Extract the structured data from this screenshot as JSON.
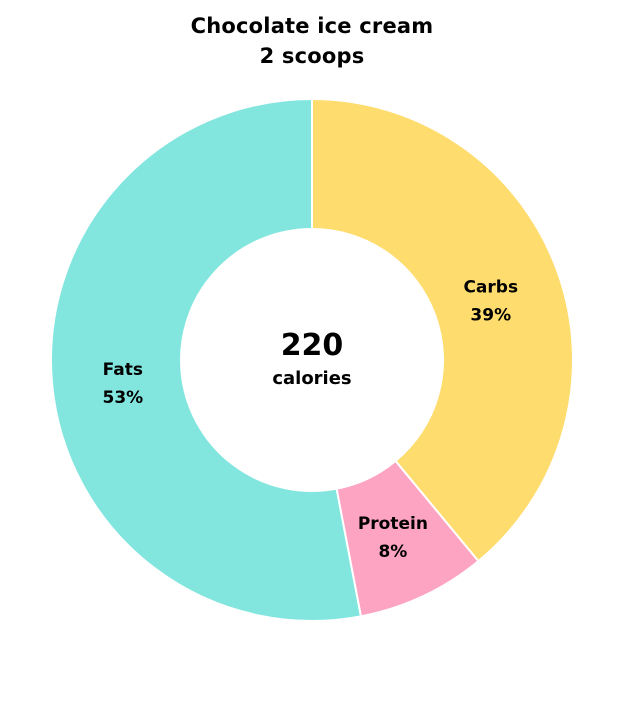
{
  "chart_data": {
    "type": "pie",
    "variant": "donut",
    "title": "Chocolate ice cream",
    "subtitle": "2 scoops",
    "center": {
      "value": "220",
      "label": "calories"
    },
    "slices": [
      {
        "label": "Carbs",
        "percent_label": "39%",
        "value": 39,
        "color": "#fedc6e"
      },
      {
        "label": "Protein",
        "percent_label": "8%",
        "value": 8,
        "color": "#fda4c3"
      },
      {
        "label": "Fats",
        "percent_label": "53%",
        "value": 53,
        "color": "#82e6df"
      }
    ],
    "legend": "none"
  }
}
